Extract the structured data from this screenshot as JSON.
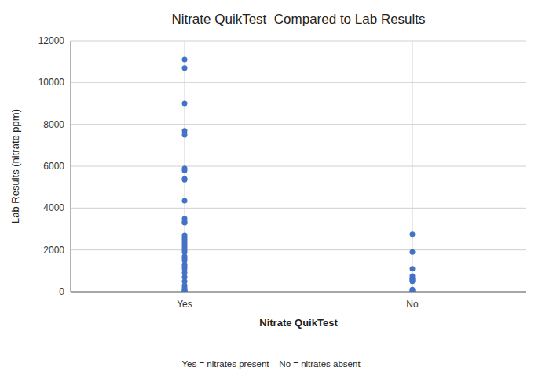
{
  "chart_data": {
    "type": "scatter",
    "title": "Nitrate QuikTest  Compared to Lab Results",
    "x_label": "Nitrate QuikTest",
    "y_label": "Lab Results (nitrate ppm)",
    "footnote": "Yes = nitrates present    No = nitrates absent",
    "categories": [
      "Yes",
      "No"
    ],
    "values": [
      [
        11100,
        10700,
        9000,
        7700,
        7500,
        5900,
        5800,
        5400,
        5350,
        4350,
        3500,
        3350,
        3300,
        2700,
        2600,
        2500,
        2400,
        2300,
        2200,
        2100,
        2000,
        1900,
        1700,
        1600,
        1500,
        1300,
        1200,
        1100,
        900,
        700,
        500,
        300,
        200,
        100,
        50,
        20,
        10
      ],
      [
        2750,
        1900,
        1100,
        750,
        650,
        600,
        550,
        500,
        100,
        50,
        10
      ]
    ],
    "color": "#4472C4",
    "ylim": [
      0,
      12000
    ],
    "yticks": [
      0,
      2000,
      4000,
      6000,
      8000,
      10000,
      12000
    ],
    "grid": true
  }
}
